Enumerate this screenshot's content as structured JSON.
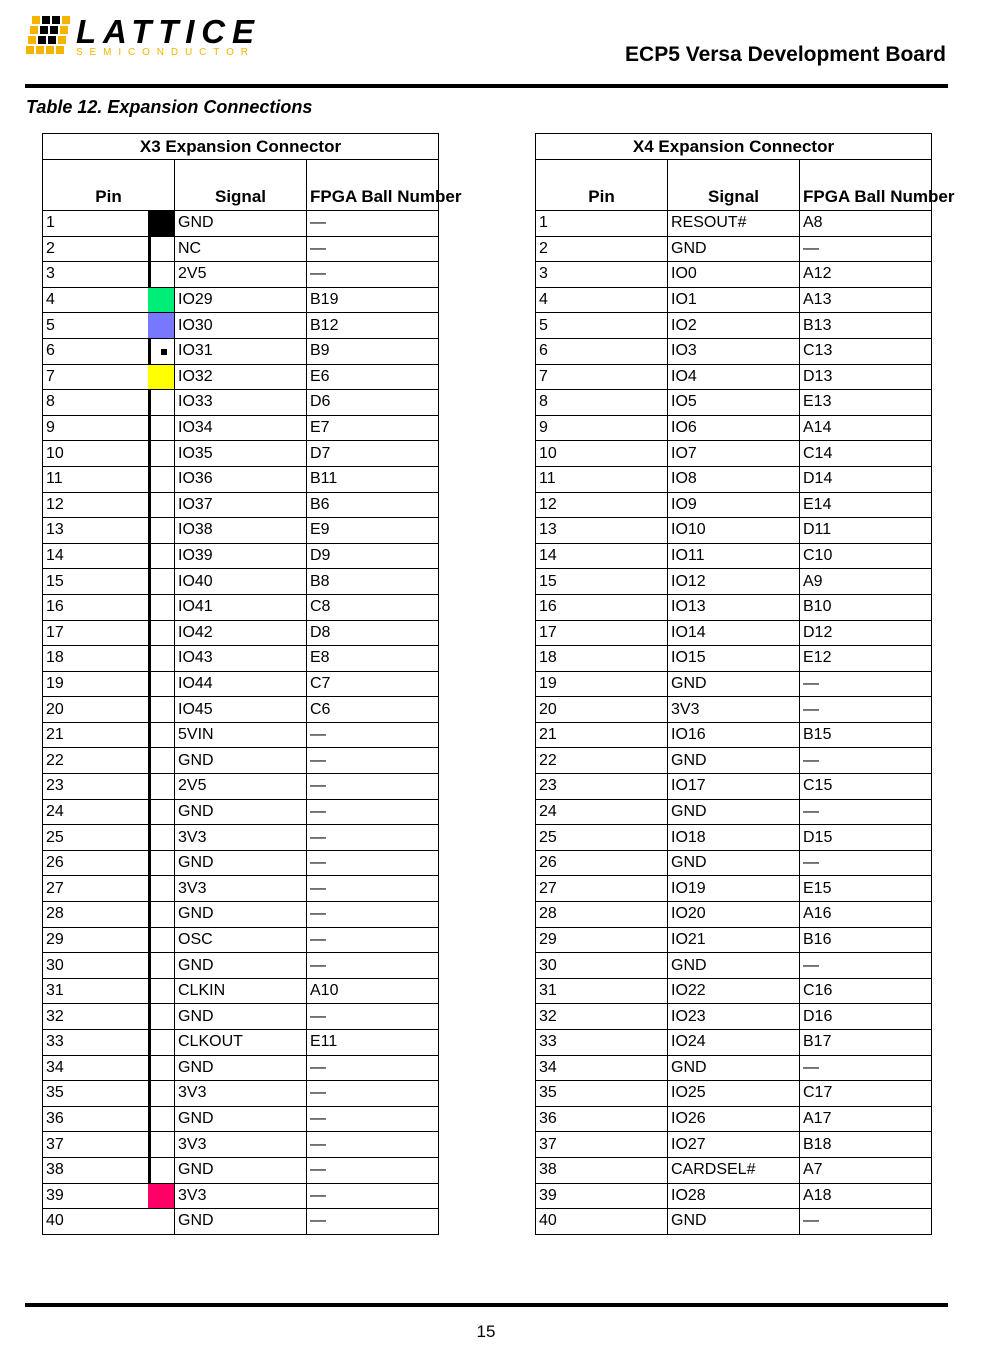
{
  "header": {
    "logo_text": "LATTICE",
    "logo_subtext": "SEMICONDUCTOR",
    "doc_title": "ECP5 Versa Development Board",
    "brand_colors": {
      "yellow": "#f5b400",
      "black": "#000000"
    }
  },
  "caption": "Table 12. Expansion Connections",
  "x3": {
    "title": "X3 Expansion Connector",
    "columns": [
      "Pin",
      "Signal",
      "FPGA Ball Number"
    ],
    "swatch_colors": {
      "1": "#000000",
      "4": "#00ee77",
      "5": "#7777ff",
      "7": "#ffff00",
      "39": "#ff0066"
    },
    "dot_pin": 6,
    "rows": [
      [
        "1",
        "GND",
        "—"
      ],
      [
        "2",
        "NC",
        "—"
      ],
      [
        "3",
        "2V5",
        "—"
      ],
      [
        "4",
        "IO29",
        "B19"
      ],
      [
        "5",
        "IO30",
        "B12"
      ],
      [
        "6",
        "IO31",
        "B9"
      ],
      [
        "7",
        "IO32",
        "E6"
      ],
      [
        "8",
        "IO33",
        "D6"
      ],
      [
        "9",
        "IO34",
        "E7"
      ],
      [
        "10",
        "IO35",
        "D7"
      ],
      [
        "11",
        "IO36",
        "B11"
      ],
      [
        "12",
        "IO37",
        "B6"
      ],
      [
        "13",
        "IO38",
        "E9"
      ],
      [
        "14",
        "IO39",
        "D9"
      ],
      [
        "15",
        "IO40",
        "B8"
      ],
      [
        "16",
        "IO41",
        "C8"
      ],
      [
        "17",
        "IO42",
        "D8"
      ],
      [
        "18",
        "IO43",
        "E8"
      ],
      [
        "19",
        "IO44",
        "C7"
      ],
      [
        "20",
        "IO45",
        "C6"
      ],
      [
        "21",
        "5VIN",
        "—"
      ],
      [
        "22",
        "GND",
        "—"
      ],
      [
        "23",
        "2V5",
        "—"
      ],
      [
        "24",
        "GND",
        "—"
      ],
      [
        "25",
        "3V3",
        "—"
      ],
      [
        "26",
        "GND",
        "—"
      ],
      [
        "27",
        "3V3",
        "—"
      ],
      [
        "28",
        "GND",
        "—"
      ],
      [
        "29",
        "OSC",
        "—"
      ],
      [
        "30",
        "GND",
        "—"
      ],
      [
        "31",
        "CLKIN",
        "A10"
      ],
      [
        "32",
        "GND",
        "—"
      ],
      [
        "33",
        "CLKOUT",
        "E11"
      ],
      [
        "34",
        "GND",
        "—"
      ],
      [
        "35",
        "3V3",
        "—"
      ],
      [
        "36",
        "GND",
        "—"
      ],
      [
        "37",
        "3V3",
        "—"
      ],
      [
        "38",
        "GND",
        "—"
      ],
      [
        "39",
        "3V3",
        "—"
      ],
      [
        "40",
        "GND",
        "—"
      ]
    ]
  },
  "x4": {
    "title": "X4 Expansion Connector",
    "columns": [
      "Pin",
      "Signal",
      "FPGA Ball Number"
    ],
    "rows": [
      [
        "1",
        "RESOUT#",
        "A8"
      ],
      [
        "2",
        "GND",
        "—"
      ],
      [
        "3",
        "IO0",
        "A12"
      ],
      [
        "4",
        "IO1",
        "A13"
      ],
      [
        "5",
        "IO2",
        "B13"
      ],
      [
        "6",
        "IO3",
        "C13"
      ],
      [
        "7",
        "IO4",
        "D13"
      ],
      [
        "8",
        "IO5",
        "E13"
      ],
      [
        "9",
        "IO6",
        "A14"
      ],
      [
        "10",
        "IO7",
        "C14"
      ],
      [
        "11",
        "IO8",
        "D14"
      ],
      [
        "12",
        "IO9",
        "E14"
      ],
      [
        "13",
        "IO10",
        "D11"
      ],
      [
        "14",
        "IO11",
        "C10"
      ],
      [
        "15",
        "IO12",
        "A9"
      ],
      [
        "16",
        "IO13",
        "B10"
      ],
      [
        "17",
        "IO14",
        "D12"
      ],
      [
        "18",
        "IO15",
        "E12"
      ],
      [
        "19",
        "GND",
        "—"
      ],
      [
        "20",
        "3V3",
        "—"
      ],
      [
        "21",
        "IO16",
        "B15"
      ],
      [
        "22",
        "GND",
        "—"
      ],
      [
        "23",
        "IO17",
        "C15"
      ],
      [
        "24",
        "GND",
        "—"
      ],
      [
        "25",
        "IO18",
        "D15"
      ],
      [
        "26",
        "GND",
        "—"
      ],
      [
        "27",
        "IO19",
        "E15"
      ],
      [
        "28",
        "IO20",
        "A16"
      ],
      [
        "29",
        "IO21",
        "B16"
      ],
      [
        "30",
        "GND",
        "—"
      ],
      [
        "31",
        "IO22",
        "C16"
      ],
      [
        "32",
        "IO23",
        "D16"
      ],
      [
        "33",
        "IO24",
        "B17"
      ],
      [
        "34",
        "GND",
        "—"
      ],
      [
        "35",
        "IO25",
        "C17"
      ],
      [
        "36",
        "IO26",
        "A17"
      ],
      [
        "37",
        "IO27",
        "B18"
      ],
      [
        "38",
        "CARDSEL#",
        "A7"
      ],
      [
        "39",
        "IO28",
        "A18"
      ],
      [
        "40",
        "GND",
        "—"
      ]
    ]
  },
  "footer": {
    "page_number": "15"
  }
}
